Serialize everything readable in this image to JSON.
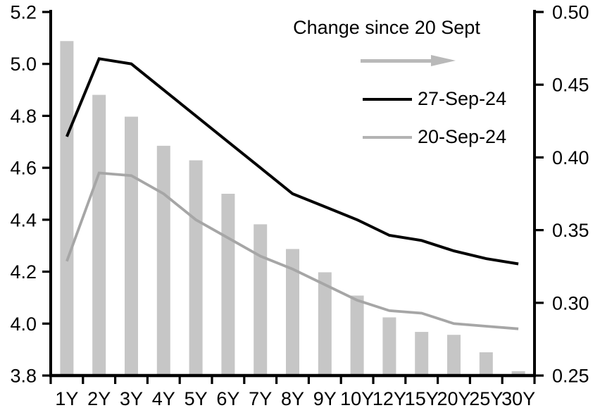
{
  "chart_data": {
    "type": "combo-bar-line",
    "title": "",
    "categories": [
      "1Y",
      "2Y",
      "3Y",
      "4Y",
      "5Y",
      "6Y",
      "7Y",
      "8Y",
      "9Y",
      "10Y",
      "12Y",
      "15Y",
      "20Y",
      "25Y",
      "30Y"
    ],
    "series": [
      {
        "name": "Change since 20 Sept",
        "type": "bar",
        "axis": "right",
        "color": "#c6c6c6",
        "values": [
          0.48,
          0.443,
          0.428,
          0.408,
          0.398,
          0.375,
          0.354,
          0.337,
          0.321,
          0.305,
          0.29,
          0.28,
          0.278,
          0.266,
          0.253
        ]
      },
      {
        "name": "27-Sep-24",
        "type": "line",
        "axis": "left",
        "color": "#000000",
        "values": [
          4.72,
          5.02,
          5.0,
          4.9,
          4.8,
          4.7,
          4.6,
          4.5,
          4.45,
          4.4,
          4.34,
          4.32,
          4.28,
          4.25,
          4.23
        ]
      },
      {
        "name": "20-Sep-24",
        "type": "line",
        "axis": "left",
        "color": "#a6a6a6",
        "values": [
          4.24,
          4.58,
          4.57,
          4.5,
          4.4,
          4.33,
          4.26,
          4.21,
          4.15,
          4.09,
          4.05,
          4.04,
          4.0,
          3.99,
          3.98
        ]
      }
    ],
    "left_axis": {
      "min": 3.8,
      "max": 5.2,
      "tick_labels": [
        "5.2",
        "5.0",
        "4.8",
        "4.6",
        "4.4",
        "4.2",
        "4.0",
        "3.8"
      ]
    },
    "right_axis": {
      "min": 0.25,
      "max": 0.5,
      "tick_labels": [
        "0.50",
        "0.45",
        "0.40",
        "0.35",
        "0.30",
        "0.25"
      ]
    },
    "grid": false,
    "legend": {
      "position": "top-center-inside",
      "title": "Change since 20 Sept",
      "arrow_icon": "right-arrow",
      "arrow_color": "#b9b9b9",
      "entries": [
        {
          "label": "27-Sep-24",
          "swatch_color": "#000000"
        },
        {
          "label": "20-Sep-24",
          "swatch_color": "#b3b3b3"
        }
      ]
    }
  }
}
